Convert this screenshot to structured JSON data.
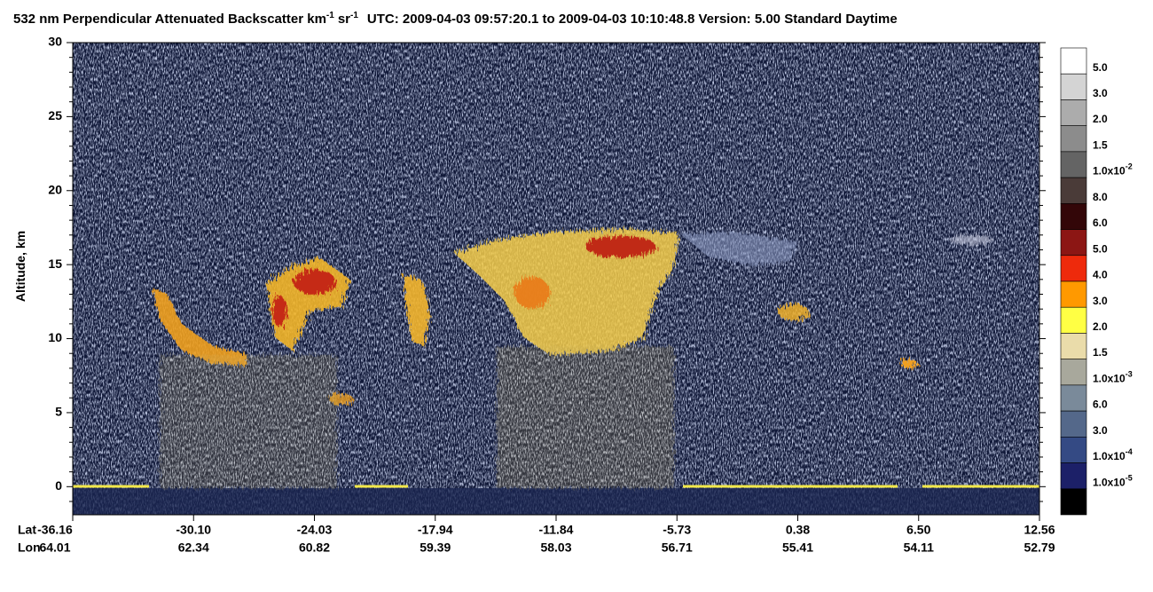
{
  "chart_data": {
    "type": "heatmap",
    "title_parts": [
      "532 nm Perpendicular Attenuated Backscatter km",
      "-1",
      "sr",
      "-1",
      "UTC: 2009-04-03 09:57:20.1 to 2009-04-03 10:10:48.8  Version: 5.00 Standard Daytime"
    ],
    "ylabel": "Altitude, km",
    "ylim": [
      -1.9,
      30
    ],
    "yticks": [
      0,
      5,
      10,
      15,
      20,
      25,
      30
    ],
    "yminorticks": [
      -1,
      1,
      2,
      3,
      4,
      6,
      7,
      8,
      9,
      11,
      12,
      13,
      14,
      16,
      17,
      18,
      19,
      21,
      22,
      23,
      24,
      26,
      27,
      28,
      29
    ],
    "x_rows": [
      {
        "name": "Lat",
        "labels": [
          "-36.16",
          "-30.10",
          "-24.03",
          "-17.94",
          "-11.84",
          "-5.73",
          "0.38",
          "6.50",
          "12.56"
        ]
      },
      {
        "name": "Lon",
        "labels": [
          "64.01",
          "62.34",
          "60.82",
          "59.39",
          "58.03",
          "56.71",
          "55.41",
          "54.11",
          "52.79"
        ]
      }
    ],
    "colorbar": {
      "colors": [
        "#ffffff",
        "#d4d4d4",
        "#acacac",
        "#8c8c8c",
        "#646464",
        "#4a3b38",
        "#330608",
        "#8c1614",
        "#ee2a0c",
        "#ff9900",
        "#ffff44",
        "#eadcaa",
        "#a8a89c",
        "#7a8a9a",
        "#54688a",
        "#344a84",
        "#1c2068",
        "#000000"
      ],
      "labels": [
        "5.0",
        "3.0",
        "2.0",
        "1.5",
        "1.0x10",
        "8.0",
        "6.0",
        "5.0",
        "4.0",
        "3.0",
        "2.0",
        "1.5",
        "1.0x10",
        "6.0",
        "3.0",
        "1.0x10",
        "1.0x10",
        null
      ],
      "exponents": [
        null,
        null,
        null,
        null,
        "-2",
        null,
        null,
        null,
        null,
        null,
        null,
        null,
        "-3",
        null,
        null,
        "-4",
        "-5",
        null
      ]
    }
  }
}
